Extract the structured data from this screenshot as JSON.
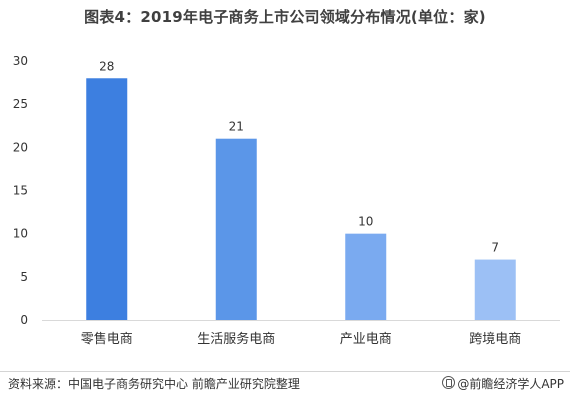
{
  "chart_data": {
    "type": "bar",
    "title": "图表4：2019年电子商务上市公司领域分布情况(单位：家)",
    "categories": [
      "零售电商",
      "生活服务电商",
      "产业电商",
      "跨境电商"
    ],
    "values": [
      28,
      21,
      10,
      7
    ],
    "ylim": [
      0,
      30
    ],
    "yticks": [
      0,
      5,
      10,
      15,
      20,
      25,
      30
    ],
    "xlabel": "",
    "ylabel": "",
    "grid": false,
    "legend": "none",
    "colors": [
      "#3d7fe0",
      "#5b96e8",
      "#7aaaf0",
      "#9cc0f5"
    ]
  },
  "footer": {
    "source": "资料来源：中国电子商务研究中心 前瞻产业研究院整理",
    "brand": "@前瞻经济学人APP"
  }
}
